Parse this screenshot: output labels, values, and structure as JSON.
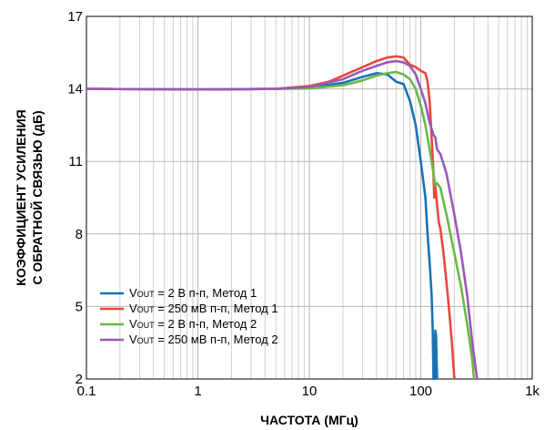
{
  "chart_data": {
    "type": "line",
    "x_scale": "log",
    "xlim": [
      0.1,
      1000
    ],
    "ylim": [
      2,
      17
    ],
    "grid": true,
    "legend_position": "bottom-left",
    "xlabel": "ЧАСТОТА (МГц)",
    "ylabel_line1": "КОЭФФИЦИЕНТ УСИЛЕНИЯ",
    "ylabel_line2": "С ОБРАТНОЙ СВЯЗЬЮ (дБ)",
    "x_ticks": [
      {
        "value": 0.1,
        "label": "0.1"
      },
      {
        "value": 1,
        "label": "1"
      },
      {
        "value": 10,
        "label": "10"
      },
      {
        "value": 100,
        "label": "100"
      },
      {
        "value": 1000,
        "label": "1k"
      }
    ],
    "y_ticks": [
      {
        "value": 2,
        "label": "2"
      },
      {
        "value": 5,
        "label": "5"
      },
      {
        "value": 8,
        "label": "8"
      },
      {
        "value": 11,
        "label": "11"
      },
      {
        "value": 14,
        "label": "14"
      },
      {
        "value": 17,
        "label": "17"
      }
    ],
    "series": [
      {
        "v": "V",
        "sub": "OUT",
        "rest": " = 2 В п-п, Метод 1",
        "color": "#1a72b4",
        "points": [
          [
            0.1,
            14.0
          ],
          [
            1,
            13.98
          ],
          [
            5,
            14.0
          ],
          [
            10,
            14.05
          ],
          [
            20,
            14.25
          ],
          [
            30,
            14.5
          ],
          [
            40,
            14.65
          ],
          [
            50,
            14.6
          ],
          [
            60,
            14.3
          ],
          [
            70,
            14.2
          ],
          [
            80,
            13.5
          ],
          [
            90,
            12.5
          ],
          [
            100,
            11.0
          ],
          [
            110,
            9.5
          ],
          [
            115,
            8.0
          ],
          [
            120,
            6.8
          ],
          [
            125,
            5.5
          ],
          [
            128,
            4.0
          ],
          [
            130,
            2.0
          ],
          [
            133,
            2.0
          ],
          [
            135,
            4.0
          ],
          [
            137,
            3.8
          ],
          [
            140,
            2.0
          ]
        ]
      },
      {
        "v": "V",
        "sub": "OUT",
        "rest": " = 250 мВ п-п, Метод 1",
        "color": "#e8473b",
        "points": [
          [
            0.1,
            14.0
          ],
          [
            1,
            13.98
          ],
          [
            5,
            14.0
          ],
          [
            10,
            14.12
          ],
          [
            15,
            14.3
          ],
          [
            20,
            14.55
          ],
          [
            30,
            14.9
          ],
          [
            40,
            15.15
          ],
          [
            50,
            15.3
          ],
          [
            60,
            15.35
          ],
          [
            70,
            15.3
          ],
          [
            80,
            15.0
          ],
          [
            90,
            14.9
          ],
          [
            100,
            14.75
          ],
          [
            110,
            14.65
          ],
          [
            115,
            14.3
          ],
          [
            120,
            13.5
          ],
          [
            125,
            12.0
          ],
          [
            130,
            10.5
          ],
          [
            132,
            9.5
          ],
          [
            135,
            10.0
          ],
          [
            140,
            9.2
          ],
          [
            145,
            8.5
          ],
          [
            150,
            8.2
          ],
          [
            160,
            7.2
          ],
          [
            170,
            6.0
          ],
          [
            180,
            4.8
          ],
          [
            190,
            3.5
          ],
          [
            200,
            2.0
          ]
        ]
      },
      {
        "v": "V",
        "sub": "OUT",
        "rest": " = 2 В п-п, Метод 2",
        "color": "#6ab846",
        "points": [
          [
            0.1,
            14.0
          ],
          [
            1,
            13.98
          ],
          [
            5,
            14.0
          ],
          [
            10,
            14.02
          ],
          [
            20,
            14.15
          ],
          [
            30,
            14.35
          ],
          [
            40,
            14.55
          ],
          [
            50,
            14.65
          ],
          [
            60,
            14.7
          ],
          [
            70,
            14.6
          ],
          [
            80,
            14.4
          ],
          [
            90,
            14.0
          ],
          [
            100,
            13.3
          ],
          [
            110,
            12.5
          ],
          [
            120,
            11.5
          ],
          [
            130,
            10.5
          ],
          [
            135,
            10.0
          ],
          [
            140,
            10.1
          ],
          [
            150,
            9.9
          ],
          [
            170,
            8.8
          ],
          [
            200,
            7.2
          ],
          [
            230,
            5.8
          ],
          [
            260,
            4.3
          ],
          [
            290,
            2.8
          ],
          [
            300,
            2.0
          ]
        ]
      },
      {
        "v": "V",
        "sub": "OUT",
        "rest": " = 250 мВ п-п, Метод 2",
        "color": "#9b59b6",
        "points": [
          [
            0.1,
            14.0
          ],
          [
            1,
            13.98
          ],
          [
            5,
            14.0
          ],
          [
            10,
            14.08
          ],
          [
            20,
            14.4
          ],
          [
            30,
            14.75
          ],
          [
            40,
            14.95
          ],
          [
            50,
            15.1
          ],
          [
            60,
            15.15
          ],
          [
            70,
            15.1
          ],
          [
            80,
            14.95
          ],
          [
            90,
            14.6
          ],
          [
            100,
            14.0
          ],
          [
            110,
            13.4
          ],
          [
            120,
            12.6
          ],
          [
            130,
            12.1
          ],
          [
            135,
            12.0
          ],
          [
            140,
            11.5
          ],
          [
            150,
            11.3
          ],
          [
            170,
            10.5
          ],
          [
            200,
            8.8
          ],
          [
            230,
            7.2
          ],
          [
            260,
            5.5
          ],
          [
            290,
            3.5
          ],
          [
            320,
            2.0
          ]
        ]
      }
    ]
  }
}
